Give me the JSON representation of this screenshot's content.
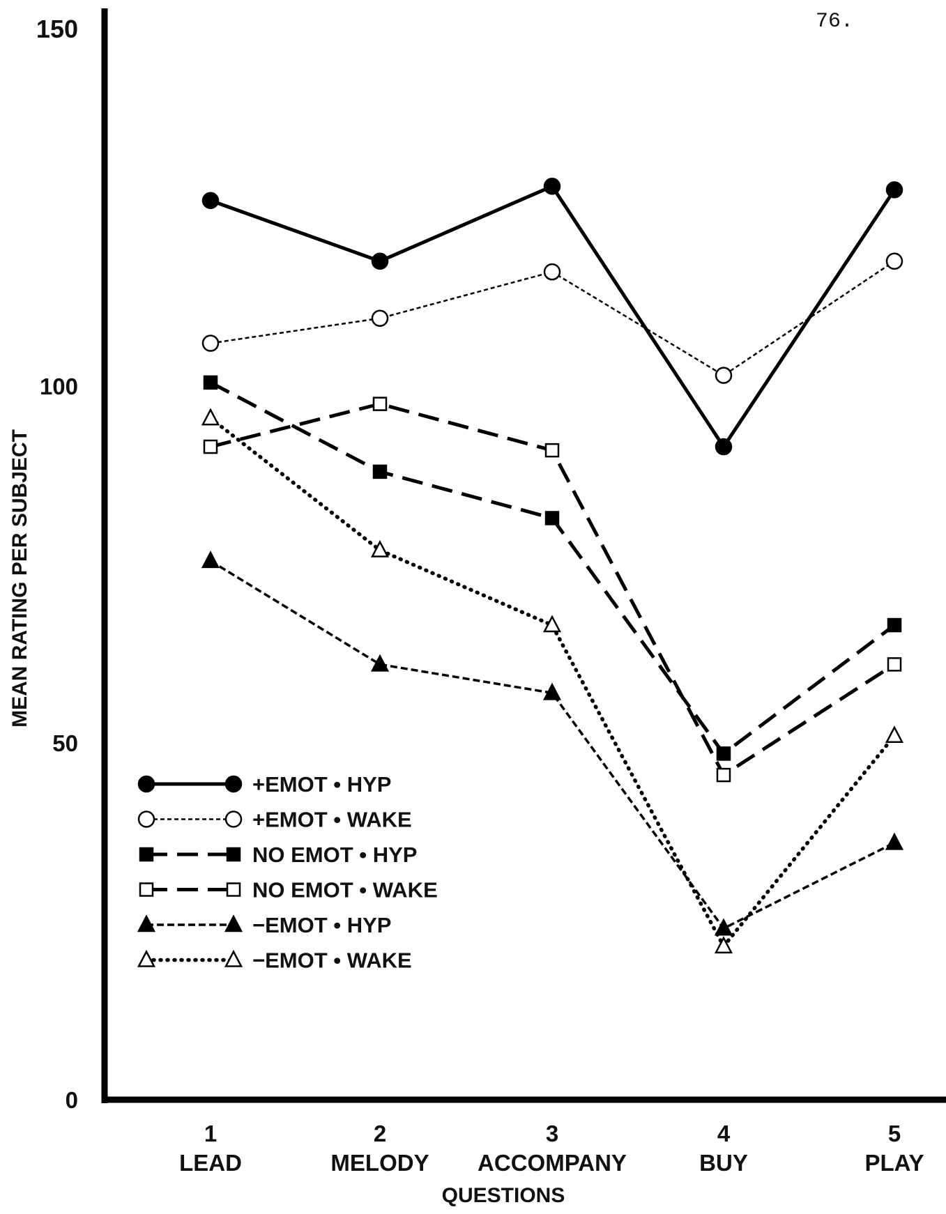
{
  "page_number": "76.",
  "chart_data": {
    "type": "line",
    "title": "",
    "xlabel": "QUESTIONS",
    "ylabel": "MEAN RATING PER SUBJECT",
    "ylim": [
      0,
      150
    ],
    "yticks": [
      0,
      50,
      100,
      150
    ],
    "categories": [
      {
        "num": "1",
        "label": "LEAD"
      },
      {
        "num": "2",
        "label": "MELODY"
      },
      {
        "num": "3",
        "label": "ACCOMPANY"
      },
      {
        "num": "4",
        "label": "BUY"
      },
      {
        "num": "5",
        "label": "PLAY"
      }
    ],
    "grid": false,
    "legend_position": "lower-left",
    "series": [
      {
        "name": "+EMOT • HYP",
        "marker": "filled-circle",
        "line": "solid",
        "values": [
          126,
          117.5,
          128,
          91.5,
          127.5
        ]
      },
      {
        "name": "+EMOT • WAKE",
        "marker": "open-circle",
        "line": "fine-dashed",
        "values": [
          106,
          109.5,
          116,
          101.5,
          117.5
        ]
      },
      {
        "name": "NO EMOT • HYP",
        "marker": "filled-square",
        "line": "long-dashed",
        "values": [
          100.5,
          88,
          81.5,
          48.5,
          66.5
        ]
      },
      {
        "name": "NO EMOT • WAKE",
        "marker": "open-square",
        "line": "long-dashed",
        "values": [
          91.5,
          97.5,
          91,
          45.5,
          61
        ]
      },
      {
        "name": "−EMOT • HYP",
        "marker": "filled-triangle",
        "line": "short-dashed",
        "values": [
          75.5,
          61,
          57,
          24,
          36
        ]
      },
      {
        "name": "−EMOT • WAKE",
        "marker": "open-triangle",
        "line": "dotted",
        "values": [
          95.5,
          77,
          66.5,
          21.5,
          51
        ]
      }
    ]
  }
}
